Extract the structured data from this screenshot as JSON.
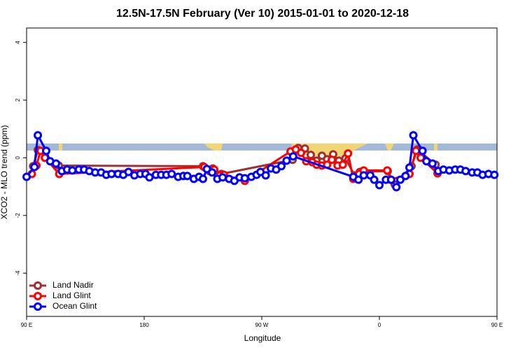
{
  "chart_data": {
    "type": "line",
    "title": "12.5N-17.5N February (Ver 10)   2015-01-01 to 2020-12-18",
    "xlabel": "Longitude",
    "ylabel": "XCO2 - MLO trend (ppm)",
    "xlim": [
      90,
      450
    ],
    "ylim": [
      -5.5,
      4.5
    ],
    "xticks": [
      {
        "value": 90,
        "label": "90 E"
      },
      {
        "value": 180,
        "label": "180"
      },
      {
        "value": 270,
        "label": "90 W"
      },
      {
        "value": 360,
        "label": "0"
      },
      {
        "value": 450,
        "label": "90 E"
      }
    ],
    "xticks_extra_note_free": null,
    "yticks": [
      -4,
      -2,
      0,
      2,
      4
    ],
    "legend": "bottom-left",
    "series": [
      {
        "name": "Land Nadir",
        "color": "#a03030",
        "x": [
          95,
          98.6,
          114.6,
          225,
          232.5,
          239,
          293.6,
          297.9,
          303,
          307.5,
          311.8,
          316,
          320,
          324.6,
          329,
          334,
          341,
          345,
          366.4,
          371.8,
          384.6,
          389,
          403
        ],
        "values": [
          -0.29,
          0.27,
          -0.27,
          -0.29,
          -0.37,
          -0.56,
          -0.07,
          0.34,
          0.32,
          0.1,
          -0.1,
          0.07,
          -0.05,
          0.12,
          -0.1,
          -0.02,
          -0.61,
          -0.49,
          -0.46,
          -0.93,
          -0.29,
          0.29,
          -0.24
        ]
      },
      {
        "name": "Land Glint",
        "color": "#ff0000",
        "x": [
          94,
          97.5,
          100.7,
          104,
          115,
          226,
          230,
          233.6,
          238,
          241,
          257,
          292,
          296,
          300,
          304,
          308.6,
          312,
          316,
          320,
          323.6,
          328,
          332,
          336,
          340,
          344.5,
          348,
          366,
          368.6,
          383,
          388,
          391.6,
          404.5
        ],
        "values": [
          -0.56,
          -0.27,
          0.24,
          0,
          -0.56,
          -0.32,
          -0.46,
          -0.41,
          -0.61,
          -0.59,
          -0.8,
          0.22,
          0.29,
          0.17,
          -0.12,
          -0.15,
          -0.24,
          -0.27,
          -0.24,
          -0.07,
          -0.27,
          -0.24,
          0.15,
          -0.73,
          -0.56,
          -0.44,
          -0.44,
          -0.76,
          -0.56,
          0.24,
          0,
          -0.54
        ]
      },
      {
        "name": "Ocean Glint",
        "color": "#0000ff",
        "x": [
          90,
          96,
          98.6,
          105,
          108,
          112.5,
          117,
          121,
          125,
          130,
          134,
          138,
          142.5,
          147,
          151,
          155,
          160,
          164,
          168,
          172.5,
          177,
          181,
          184,
          189,
          193,
          197,
          201,
          206,
          210,
          213,
          218,
          222,
          225,
          228,
          232,
          236,
          240,
          245,
          249,
          253,
          257,
          262,
          266,
          269,
          273,
          277,
          281,
          285,
          289,
          294,
          340,
          344,
          348,
          353,
          356,
          360,
          365,
          369,
          373,
          376,
          380,
          383,
          386,
          393,
          396,
          400.6,
          405,
          409,
          413.5,
          418,
          422,
          426,
          431,
          435,
          439,
          443.5,
          448
        ],
        "values": [
          -0.66,
          -0.32,
          0.78,
          0.24,
          -0.12,
          -0.2,
          -0.46,
          -0.41,
          -0.44,
          -0.41,
          -0.41,
          -0.46,
          -0.51,
          -0.51,
          -0.59,
          -0.56,
          -0.56,
          -0.59,
          -0.49,
          -0.61,
          -0.56,
          -0.56,
          -0.68,
          -0.59,
          -0.59,
          -0.59,
          -0.56,
          -0.66,
          -0.63,
          -0.63,
          -0.73,
          -0.66,
          -0.73,
          -0.39,
          -0.51,
          -0.73,
          -0.68,
          -0.73,
          -0.8,
          -0.68,
          -0.71,
          -0.66,
          -0.59,
          -0.49,
          -0.61,
          -0.37,
          -0.41,
          -0.29,
          -0.1,
          0.05,
          -0.66,
          -0.76,
          -0.61,
          -0.61,
          -0.76,
          -0.95,
          -0.76,
          -0.76,
          -1.02,
          -0.76,
          -0.63,
          -0.34,
          0.78,
          0.24,
          -0.12,
          -0.2,
          -0.46,
          -0.41,
          -0.44,
          -0.41,
          -0.41,
          -0.46,
          -0.51,
          -0.51,
          -0.59,
          -0.56,
          -0.59
        ]
      }
    ]
  }
}
